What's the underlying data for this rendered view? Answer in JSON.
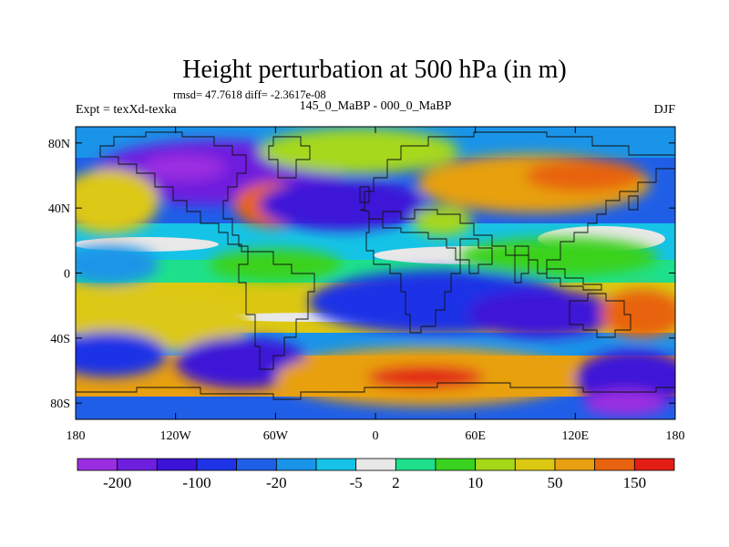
{
  "title": "Height perturbation at 500 hPa (in m)",
  "stats": "rmsd= 47.7618 diff= -2.3617e-08",
  "expt": "Expt = texXd-texka",
  "comparison": "145_0_MaBP - 000_0_MaBP",
  "season": "DJF",
  "axes": {
    "lat_ticks": [
      "80N",
      "40N",
      "0",
      "40S",
      "80S"
    ],
    "lat_values": [
      80,
      40,
      0,
      -40,
      -80
    ],
    "lon_ticks": [
      "180",
      "120W",
      "60W",
      "0",
      "60E",
      "120E",
      "180"
    ],
    "lon_values": [
      -180,
      -120,
      -60,
      0,
      60,
      120,
      180
    ],
    "lon_range": [
      -180,
      180
    ],
    "lat_range": [
      -90,
      90
    ]
  },
  "colorbar": {
    "colors": [
      "#9b2de0",
      "#6e1fdd",
      "#3c14d8",
      "#1f33e6",
      "#1f5fe8",
      "#1a94e8",
      "#15c3e6",
      "#e8e8e8",
      "#1ee08c",
      "#3ad21f",
      "#a6d81a",
      "#dcc812",
      "#e8a010",
      "#e86410",
      "#e21e14"
    ],
    "tick_labels": [
      "-200",
      "-100",
      "-20",
      "-5",
      "2",
      "10",
      "50",
      "150"
    ],
    "tick_boundaries": [
      1,
      3,
      5,
      7,
      8,
      10,
      12,
      14
    ]
  },
  "field_blobs": [
    {
      "lon": -95,
      "lat": 62,
      "rx": 75,
      "ry": 20,
      "level": 1
    },
    {
      "lon": -115,
      "lat": 65,
      "rx": 25,
      "ry": 8,
      "level": 0
    },
    {
      "lon": -60,
      "lat": 42,
      "rx": 25,
      "ry": 14,
      "level": 13
    },
    {
      "lon": -160,
      "lat": 44,
      "rx": 30,
      "ry": 20,
      "level": 11
    },
    {
      "lon": -10,
      "lat": 75,
      "rx": 60,
      "ry": 14,
      "level": 10
    },
    {
      "lon": -20,
      "lat": 42,
      "rx": 50,
      "ry": 16,
      "level": 2
    },
    {
      "lon": 40,
      "lat": 32,
      "rx": 18,
      "ry": 9,
      "level": 10
    },
    {
      "lon": 95,
      "lat": 55,
      "rx": 70,
      "ry": 18,
      "level": 12
    },
    {
      "lon": 125,
      "lat": 60,
      "rx": 35,
      "ry": 10,
      "level": 13
    },
    {
      "lon": 110,
      "lat": 10,
      "rx": 60,
      "ry": 12,
      "level": 9
    },
    {
      "lon": -160,
      "lat": 5,
      "rx": 30,
      "ry": 12,
      "level": 5
    },
    {
      "lon": -60,
      "lat": 5,
      "rx": 40,
      "ry": 10,
      "level": 9
    },
    {
      "lon": 40,
      "lat": -18,
      "rx": 80,
      "ry": 20,
      "level": 3
    },
    {
      "lon": 100,
      "lat": -25,
      "rx": 45,
      "ry": 15,
      "level": 2
    },
    {
      "lon": 160,
      "lat": -25,
      "rx": 25,
      "ry": 15,
      "level": 13
    },
    {
      "lon": -130,
      "lat": -30,
      "rx": 55,
      "ry": 18,
      "level": 11
    },
    {
      "lon": -160,
      "lat": -50,
      "rx": 35,
      "ry": 14,
      "level": 3
    },
    {
      "lon": -80,
      "lat": -55,
      "rx": 40,
      "ry": 16,
      "level": 2
    },
    {
      "lon": 30,
      "lat": -64,
      "rx": 90,
      "ry": 18,
      "level": 12
    },
    {
      "lon": 30,
      "lat": -64,
      "rx": 35,
      "ry": 7,
      "level": 14
    },
    {
      "lon": 155,
      "lat": -65,
      "rx": 35,
      "ry": 18,
      "level": 2
    },
    {
      "lon": 150,
      "lat": -80,
      "rx": 25,
      "ry": 8,
      "level": 0
    }
  ]
}
